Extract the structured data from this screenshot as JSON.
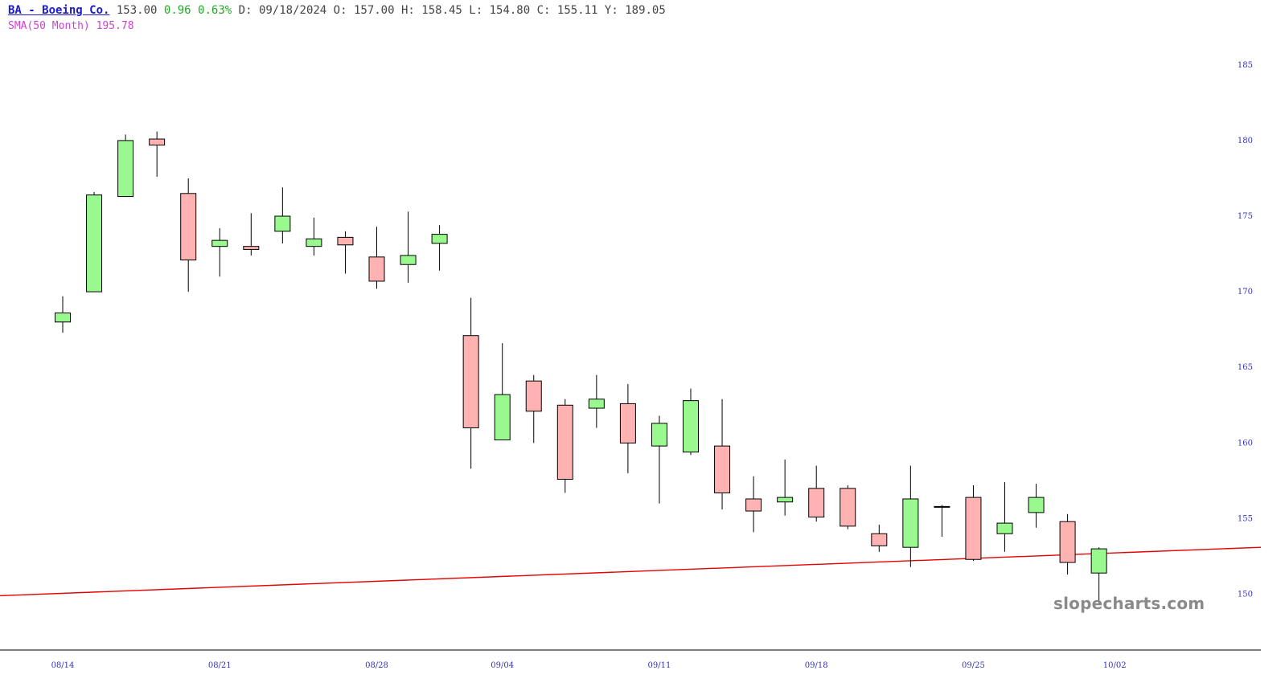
{
  "header": {
    "ticker": "BA - Boeing Co.",
    "price": "153.00",
    "change": "0.96",
    "change_pct": "0.63%",
    "date_label": "D:",
    "date": "09/18/2024",
    "open_label": "O:",
    "open": "157.00",
    "high_label": "H:",
    "high": "158.45",
    "low_label": "L:",
    "low": "154.80",
    "close_label": "C:",
    "close": "155.11",
    "y_label": "Y:",
    "y": "189.05"
  },
  "indicator": {
    "label": "SMA(50 Month)",
    "value": "195.78"
  },
  "watermark": "slopecharts.com",
  "chart_data": {
    "type": "candlestick",
    "ylim": [
      147,
      186
    ],
    "y_ticks": [
      150,
      155,
      160,
      165,
      170,
      175,
      180,
      185
    ],
    "x_tick_labels": [
      {
        "label": "08/14",
        "index": 0
      },
      {
        "label": "08/21",
        "index": 5
      },
      {
        "label": "08/28",
        "index": 10
      },
      {
        "label": "09/04",
        "index": 14
      },
      {
        "label": "09/11",
        "index": 19
      },
      {
        "label": "09/18",
        "index": 24
      },
      {
        "label": "09/25",
        "index": 29
      },
      {
        "label": "10/02",
        "index": 33.5
      }
    ],
    "colors": {
      "up": "#99f88e",
      "down": "#feb2b2",
      "wick": "#000000",
      "trendline": "#e60000",
      "axis_text": "#3333bb"
    },
    "candles": [
      {
        "o": 168.0,
        "h": 169.7,
        "l": 167.3,
        "c": 168.6
      },
      {
        "o": 170.0,
        "h": 176.6,
        "l": 170.0,
        "c": 176.4
      },
      {
        "o": 176.3,
        "h": 180.4,
        "l": 176.3,
        "c": 180.0
      },
      {
        "o": 180.1,
        "h": 180.6,
        "l": 177.6,
        "c": 179.7
      },
      {
        "o": 176.5,
        "h": 177.5,
        "l": 170.0,
        "c": 172.1
      },
      {
        "o": 173.0,
        "h": 174.2,
        "l": 171.0,
        "c": 173.4
      },
      {
        "o": 173.0,
        "h": 175.2,
        "l": 172.4,
        "c": 172.8
      },
      {
        "o": 174.0,
        "h": 176.9,
        "l": 173.2,
        "c": 175.0
      },
      {
        "o": 173.0,
        "h": 174.9,
        "l": 172.4,
        "c": 173.5
      },
      {
        "o": 173.6,
        "h": 174.0,
        "l": 171.2,
        "c": 173.1
      },
      {
        "o": 172.3,
        "h": 174.3,
        "l": 170.2,
        "c": 170.7
      },
      {
        "o": 171.8,
        "h": 175.3,
        "l": 170.6,
        "c": 172.4
      },
      {
        "o": 173.2,
        "h": 174.4,
        "l": 171.4,
        "c": 173.8
      },
      {
        "o": 167.1,
        "h": 169.6,
        "l": 158.3,
        "c": 161.0
      },
      {
        "o": 160.2,
        "h": 166.6,
        "l": 160.2,
        "c": 163.2
      },
      {
        "o": 164.1,
        "h": 164.5,
        "l": 160.0,
        "c": 162.1
      },
      {
        "o": 162.5,
        "h": 162.9,
        "l": 156.7,
        "c": 157.6
      },
      {
        "o": 162.3,
        "h": 164.5,
        "l": 161.0,
        "c": 162.9
      },
      {
        "o": 162.6,
        "h": 163.9,
        "l": 158.0,
        "c": 160.0
      },
      {
        "o": 159.8,
        "h": 161.8,
        "l": 156.0,
        "c": 161.3
      },
      {
        "o": 159.4,
        "h": 163.6,
        "l": 159.2,
        "c": 162.8
      },
      {
        "o": 159.8,
        "h": 162.9,
        "l": 155.6,
        "c": 156.7
      },
      {
        "o": 156.3,
        "h": 157.8,
        "l": 154.1,
        "c": 155.5
      },
      {
        "o": 156.1,
        "h": 158.9,
        "l": 155.2,
        "c": 156.4
      },
      {
        "o": 157.0,
        "h": 158.5,
        "l": 154.8,
        "c": 155.1
      },
      {
        "o": 157.0,
        "h": 157.2,
        "l": 154.3,
        "c": 154.5
      },
      {
        "o": 154.0,
        "h": 154.6,
        "l": 152.8,
        "c": 153.2
      },
      {
        "o": 153.1,
        "h": 158.5,
        "l": 151.8,
        "c": 156.3
      },
      {
        "o": 155.8,
        "h": 155.9,
        "l": 153.8,
        "c": 155.8
      },
      {
        "o": 156.4,
        "h": 157.2,
        "l": 152.2,
        "c": 152.3
      },
      {
        "o": 154.0,
        "h": 157.4,
        "l": 152.8,
        "c": 154.7
      },
      {
        "o": 155.4,
        "h": 157.3,
        "l": 154.4,
        "c": 156.4
      },
      {
        "o": 154.8,
        "h": 155.3,
        "l": 151.3,
        "c": 152.1
      },
      {
        "o": 151.4,
        "h": 153.1,
        "l": 149.4,
        "c": 153.0
      }
    ],
    "trendline": {
      "start_value": 149.9,
      "end_value": 153.1
    }
  }
}
